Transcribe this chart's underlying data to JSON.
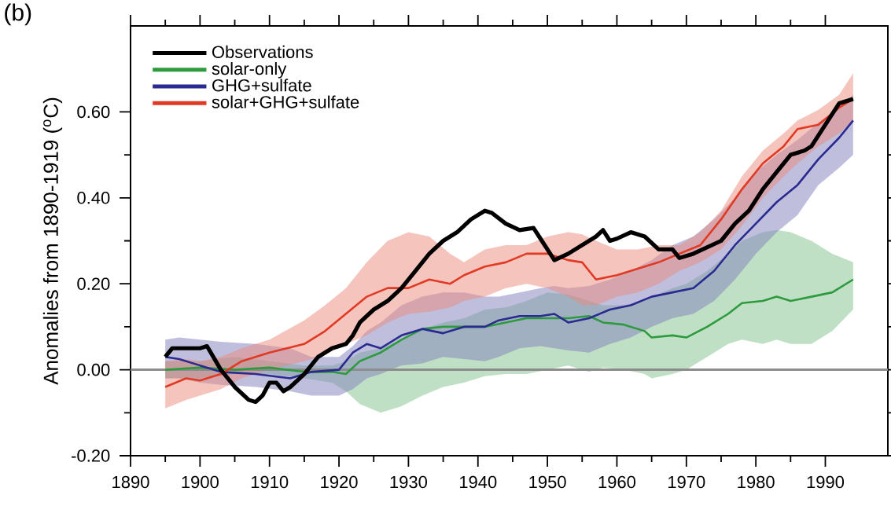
{
  "chart_data": {
    "type": "line",
    "ylabel": "Anomalies from 1890-1919 ($^{o}$C)",
    "annotations": [
      "(b)"
    ],
    "xlim": [
      1890,
      1999
    ],
    "ylim": [
      -0.2,
      0.8
    ],
    "xticks": [
      1890,
      1900,
      1910,
      1920,
      1930,
      1940,
      1950,
      1960,
      1970,
      1980,
      1990
    ],
    "yticks": [
      {
        "value": -0.2,
        "label": "-0.20"
      },
      {
        "value": 0,
        "label": "0.00"
      },
      {
        "value": 0.2,
        "label": "0.20"
      },
      {
        "value": 0.4,
        "label": "0.40"
      },
      {
        "value": 0.6,
        "label": "0.60"
      }
    ],
    "legend": "top left",
    "grid": false,
    "marker": "none",
    "line_style": "solid",
    "ref_lines": [
      {
        "axis": "y",
        "value": 0,
        "color": "#8c8c8c"
      }
    ],
    "series": [
      {
        "name": "Observations",
        "color": "#000000",
        "x": [
          1895,
          1896,
          1900,
          1901,
          1903,
          1905,
          1907,
          1908,
          1909,
          1910,
          1911,
          1912,
          1913,
          1915,
          1917,
          1919,
          1921,
          1922,
          1923,
          1925,
          1927,
          1929,
          1931,
          1933,
          1935,
          1937,
          1939,
          1941,
          1942,
          1944,
          1946,
          1948,
          1949,
          1950,
          1951,
          1953,
          1955,
          1957,
          1958,
          1959,
          1960,
          1962,
          1964,
          1966,
          1968,
          1969,
          1971,
          1973,
          1975,
          1977,
          1979,
          1981,
          1983,
          1985,
          1987,
          1988,
          1990,
          1992,
          1994
        ],
        "values": [
          0.03,
          0.05,
          0.05,
          0.055,
          0.0,
          -0.04,
          -0.07,
          -0.075,
          -0.06,
          -0.03,
          -0.03,
          -0.05,
          -0.04,
          -0.01,
          0.03,
          0.05,
          0.06,
          0.08,
          0.11,
          0.14,
          0.16,
          0.19,
          0.23,
          0.27,
          0.3,
          0.32,
          0.35,
          0.37,
          0.365,
          0.34,
          0.325,
          0.33,
          0.305,
          0.28,
          0.255,
          0.27,
          0.29,
          0.31,
          0.325,
          0.3,
          0.305,
          0.32,
          0.31,
          0.28,
          0.28,
          0.26,
          0.27,
          0.285,
          0.3,
          0.34,
          0.37,
          0.42,
          0.46,
          0.5,
          0.51,
          0.52,
          0.57,
          0.62,
          0.63
        ]
      },
      {
        "name": "solar-only",
        "color": "#2e9a3e",
        "x": [
          1895,
          1900,
          1905,
          1910,
          1915,
          1919,
          1921,
          1923,
          1926,
          1929,
          1932,
          1935,
          1938,
          1941,
          1944,
          1947,
          1950,
          1953,
          1956,
          1958,
          1961,
          1964,
          1965,
          1968,
          1970,
          1973,
          1976,
          1978,
          1981,
          1983,
          1985,
          1988,
          1991,
          1994
        ],
        "values": [
          0.0,
          0.005,
          0.0,
          0.005,
          -0.005,
          -0.005,
          -0.01,
          0.02,
          0.04,
          0.07,
          0.095,
          0.1,
          0.1,
          0.1,
          0.11,
          0.12,
          0.12,
          0.12,
          0.125,
          0.11,
          0.105,
          0.09,
          0.075,
          0.08,
          0.075,
          0.1,
          0.13,
          0.155,
          0.16,
          0.17,
          0.16,
          0.17,
          0.18,
          0.21
        ],
        "lower": [
          -0.02,
          -0.02,
          -0.01,
          -0.01,
          -0.02,
          -0.03,
          -0.05,
          -0.08,
          -0.1,
          -0.085,
          -0.06,
          -0.04,
          -0.03,
          -0.015,
          -0.01,
          -0.01,
          0.0,
          0.01,
          -0.005,
          0.005,
          0.0,
          -0.01,
          -0.02,
          -0.01,
          0.0,
          0.03,
          0.06,
          0.07,
          0.06,
          0.07,
          0.06,
          0.06,
          0.09,
          0.14
        ],
        "upper": [
          0.02,
          0.02,
          0.03,
          0.02,
          0.01,
          0.01,
          0.02,
          0.04,
          0.05,
          0.07,
          0.095,
          0.11,
          0.12,
          0.14,
          0.145,
          0.16,
          0.18,
          0.175,
          0.16,
          0.15,
          0.15,
          0.16,
          0.17,
          0.19,
          0.2,
          0.23,
          0.27,
          0.3,
          0.32,
          0.325,
          0.32,
          0.3,
          0.27,
          0.25
        ]
      },
      {
        "name": "GHG+sulfate",
        "color": "#2a2a90",
        "x": [
          1895,
          1897,
          1900,
          1903,
          1908,
          1913,
          1916,
          1920,
          1922,
          1924,
          1926,
          1929,
          1932,
          1935,
          1938,
          1941,
          1943,
          1946,
          1949,
          1951,
          1953,
          1956,
          1959,
          1962,
          1965,
          1968,
          1971,
          1974,
          1977,
          1980,
          1983,
          1986,
          1989,
          1992,
          1994
        ],
        "values": [
          0.03,
          0.025,
          0.01,
          -0.005,
          -0.01,
          -0.02,
          -0.005,
          0.0,
          0.04,
          0.06,
          0.05,
          0.08,
          0.095,
          0.085,
          0.1,
          0.1,
          0.115,
          0.125,
          0.125,
          0.13,
          0.11,
          0.12,
          0.14,
          0.15,
          0.17,
          0.18,
          0.19,
          0.23,
          0.29,
          0.34,
          0.39,
          0.43,
          0.49,
          0.54,
          0.58
        ],
        "lower": [
          -0.02,
          -0.02,
          -0.03,
          -0.035,
          -0.04,
          -0.05,
          -0.06,
          -0.06,
          -0.045,
          -0.02,
          -0.01,
          0.01,
          0.015,
          0.03,
          0.025,
          0.02,
          0.03,
          0.05,
          0.055,
          0.05,
          0.045,
          0.04,
          0.06,
          0.075,
          0.1,
          0.12,
          0.13,
          0.16,
          0.21,
          0.27,
          0.32,
          0.36,
          0.43,
          0.47,
          0.5
        ],
        "upper": [
          0.07,
          0.075,
          0.07,
          0.065,
          0.06,
          0.05,
          0.03,
          0.03,
          0.055,
          0.09,
          0.11,
          0.15,
          0.17,
          0.18,
          0.18,
          0.17,
          0.17,
          0.18,
          0.19,
          0.195,
          0.19,
          0.195,
          0.21,
          0.23,
          0.255,
          0.29,
          0.31,
          0.35,
          0.4,
          0.46,
          0.5,
          0.535,
          0.575,
          0.61,
          0.64
        ]
      },
      {
        "name": "solar+GHG+sulfate",
        "color": "#e03a25",
        "x": [
          1895,
          1898,
          1900,
          1903,
          1906,
          1910,
          1915,
          1918,
          1921,
          1924,
          1927,
          1930,
          1933,
          1936,
          1938,
          1941,
          1944,
          1947,
          1950,
          1953,
          1955,
          1957,
          1960,
          1963,
          1966,
          1969,
          1972,
          1975,
          1978,
          1981,
          1984,
          1986,
          1989,
          1992,
          1994
        ],
        "values": [
          -0.04,
          -0.02,
          -0.025,
          -0.01,
          0.02,
          0.04,
          0.06,
          0.09,
          0.13,
          0.17,
          0.19,
          0.19,
          0.21,
          0.2,
          0.22,
          0.24,
          0.25,
          0.27,
          0.27,
          0.255,
          0.25,
          0.21,
          0.22,
          0.235,
          0.25,
          0.27,
          0.29,
          0.35,
          0.42,
          0.48,
          0.52,
          0.56,
          0.57,
          0.61,
          0.63
        ],
        "lower": [
          -0.09,
          -0.07,
          -0.06,
          -0.045,
          -0.02,
          0.0,
          0.02,
          0.035,
          0.06,
          0.08,
          0.11,
          0.13,
          0.135,
          0.145,
          0.16,
          0.17,
          0.19,
          0.2,
          0.19,
          0.17,
          0.15,
          0.15,
          0.17,
          0.18,
          0.2,
          0.23,
          0.25,
          0.28,
          0.335,
          0.4,
          0.45,
          0.48,
          0.52,
          0.55,
          0.58
        ],
        "upper": [
          0.02,
          0.025,
          0.02,
          0.03,
          0.05,
          0.07,
          0.115,
          0.15,
          0.19,
          0.25,
          0.3,
          0.32,
          0.31,
          0.27,
          0.25,
          0.28,
          0.29,
          0.29,
          0.31,
          0.32,
          0.315,
          0.3,
          0.28,
          0.28,
          0.29,
          0.29,
          0.32,
          0.37,
          0.45,
          0.51,
          0.55,
          0.58,
          0.605,
          0.64,
          0.69
        ]
      }
    ]
  }
}
